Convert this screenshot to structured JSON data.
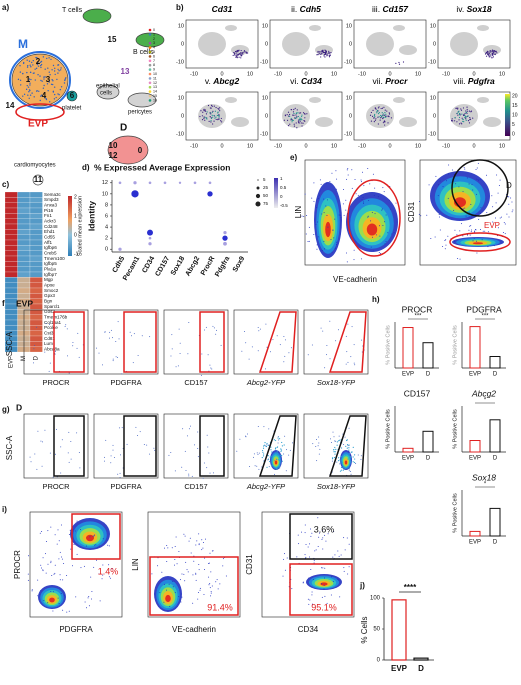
{
  "panel_labels": {
    "a": "a)",
    "b": "b)",
    "c": "c)",
    "d": "d)",
    "e": "e)",
    "f": "f)",
    "g": "g)",
    "h": "h)",
    "i": "i)",
    "j": "j)"
  },
  "a": {
    "M": "M",
    "t_cells": "T cells",
    "b_cells": "B cells",
    "epithelial": [
      "epithelial",
      "cells"
    ],
    "platelet": "platelet",
    "pericytes": "pericytes",
    "evp": "EVP",
    "d": "D",
    "cardiomyocytes": "cardiomyocytes",
    "clusters": [
      "2",
      "1",
      "3",
      "4",
      "14",
      "15",
      "13",
      "6",
      "10",
      "12",
      "0",
      "11"
    ],
    "legend": [
      "0",
      "1",
      "2",
      "3",
      "4",
      "5",
      "6",
      "7",
      "8",
      "9",
      "10",
      "11",
      "12",
      "13",
      "14",
      "15",
      "16"
    ]
  },
  "b": {
    "panels": [
      {
        "gene": "Cd31"
      },
      {
        "numeral": "ii.",
        "gene": "Cdh5"
      },
      {
        "numeral": "iii.",
        "gene": "Cd157"
      },
      {
        "numeral": "iv.",
        "gene": "Sox18"
      },
      {
        "numeral": "v.",
        "gene": "Abcg2"
      },
      {
        "numeral": "vi.",
        "gene": "Cd34"
      },
      {
        "numeral": "vii.",
        "gene": "Procr"
      },
      {
        "numeral": "viii.",
        "gene": "Pdgfra"
      }
    ],
    "xticks": [
      -10,
      0,
      10
    ],
    "yticks": [
      10,
      0,
      -10
    ],
    "colorbar_ticks": [
      20,
      15,
      10,
      5,
      0
    ]
  },
  "c": {
    "colorbar_label": "Scaled mean expression",
    "colorbar_ticks": [
      2,
      1,
      0,
      -1
    ],
    "columns": [
      "EVP",
      "M",
      "D"
    ],
    "genes": [
      "Sema3c",
      "Smpd3",
      "Anxa3",
      "Pi16",
      "Fn1",
      "Ackr3",
      "Cd248",
      "Ehd1",
      "Cd55",
      "Aff1",
      "Igfbp6",
      "Creb5",
      "Tmem100",
      "Igfbp5",
      "Pla1a",
      "Igfbp7",
      "Mgp",
      "Apoe",
      "Smoc2",
      "Gpx3",
      "Bgn",
      "Sparcl1",
      "G0s2",
      "Tmem176b",
      "Col15a1",
      "Pcolce",
      "Cst3",
      "Cd81",
      "Lum",
      "Abca8a"
    ],
    "values": [
      [
        2,
        -0.6,
        -0.6
      ],
      [
        2,
        -0.6,
        -0.5
      ],
      [
        2,
        -0.6,
        -0.6
      ],
      [
        2,
        -0.5,
        -0.6
      ],
      [
        2,
        -0.6,
        -0.5
      ],
      [
        2,
        -0.6,
        -0.6
      ],
      [
        2,
        -0.6,
        -0.5
      ],
      [
        2,
        -0.5,
        -0.6
      ],
      [
        2,
        -0.6,
        -0.6
      ],
      [
        2,
        -0.6,
        -0.6
      ],
      [
        2,
        -0.5,
        -0.6
      ],
      [
        2,
        -0.6,
        -0.6
      ],
      [
        2,
        -0.6,
        -0.5
      ],
      [
        2,
        -0.6,
        -0.6
      ],
      [
        2,
        -0.6,
        -0.6
      ],
      [
        2,
        -0.5,
        -0.6
      ],
      [
        -0.8,
        0.6,
        1.6
      ],
      [
        -0.8,
        0.6,
        1.6
      ],
      [
        -0.8,
        0.7,
        1.5
      ],
      [
        -0.8,
        0.6,
        1.6
      ],
      [
        -0.8,
        0.7,
        1.5
      ],
      [
        -0.8,
        0.6,
        1.6
      ],
      [
        -0.8,
        0.6,
        1.6
      ],
      [
        -0.8,
        0.7,
        1.5
      ],
      [
        -0.8,
        0.6,
        1.6
      ],
      [
        -0.8,
        0.6,
        1.6
      ],
      [
        -0.8,
        0.7,
        1.5
      ],
      [
        -0.8,
        0.6,
        1.6
      ],
      [
        -0.8,
        0.6,
        1.6
      ],
      [
        -0.8,
        0.7,
        1.5
      ]
    ]
  },
  "d": {
    "title": "% Expressed Average Expression",
    "ylabel": "Identity",
    "genes": [
      "Cdh5",
      "Pecam1",
      "CD34",
      "CD157",
      "Sox18",
      "Abcg2",
      "ProcR",
      "Pdgfra",
      "Sox9"
    ],
    "ylim": [
      -0.5,
      12.5
    ],
    "yticks": [
      0,
      2,
      4,
      6,
      8,
      10,
      12
    ],
    "dots": [
      {
        "gene": "Cdh5",
        "identity": 12,
        "pct": 10
      },
      {
        "gene": "Cdh5",
        "identity": 0,
        "pct": 15
      },
      {
        "gene": "Pecam1",
        "identity": 12,
        "pct": 15
      },
      {
        "gene": "Pecam1",
        "identity": 10,
        "pct": 75
      },
      {
        "gene": "CD34",
        "identity": 12,
        "pct": 10
      },
      {
        "gene": "CD34",
        "identity": 3,
        "pct": 50
      },
      {
        "gene": "CD34",
        "identity": 1,
        "pct": 15
      },
      {
        "gene": "CD34",
        "identity": 2,
        "pct": 10
      },
      {
        "gene": "CD157",
        "identity": 12,
        "pct": 10
      },
      {
        "gene": "Abcg2",
        "identity": 12,
        "pct": 10
      },
      {
        "gene": "ProcR",
        "identity": 10,
        "pct": 40
      },
      {
        "gene": "ProcR",
        "identity": 12,
        "pct": 10
      },
      {
        "gene": "Pdgfra",
        "identity": 2,
        "pct": 40
      },
      {
        "gene": "Pdgfra",
        "identity": 1,
        "pct": 20
      },
      {
        "gene": "Pdgfra",
        "identity": 3,
        "pct": 15
      },
      {
        "gene": "Sox18",
        "identity": 12,
        "pct": 8
      }
    ],
    "size_legend": [
      5,
      25,
      50,
      75
    ],
    "color_ticks": [
      1,
      0.5,
      0,
      -0.5
    ]
  },
  "e": {
    "plot1": {
      "ylabel": "LIN",
      "xlabel": "VE-cadherin"
    },
    "plot2": {
      "ylabel": "CD31",
      "xlabel": "CD34",
      "d": "D",
      "evp": "EVP"
    }
  },
  "f": {
    "group": "EVP",
    "ylabel": "SSC-A",
    "xlabels": [
      "PROCR",
      "PDGFRA",
      "CD157",
      "Abcg2-YFP",
      "Sox18-YFP"
    ]
  },
  "g": {
    "group": "D",
    "ylabel": "SSC-A",
    "xlabels": [
      "PROCR",
      "PDGFRA",
      "CD157",
      "Abcg2-YFP",
      "Sox18-YFP"
    ]
  },
  "h": {
    "ylabel": "% Positive Cells",
    "groups": [
      "EVP",
      "D"
    ],
    "ylim": [
      0,
      100
    ],
    "charts": [
      {
        "title": "PROCR",
        "values": [
          88,
          55
        ],
        "sig": "***"
      },
      {
        "title": "PDGFRA",
        "values": [
          90,
          25
        ],
        "sig": "***"
      },
      {
        "title": "CD157",
        "values": [
          8,
          45
        ]
      },
      {
        "title": "Abcg2",
        "values": [
          25,
          70
        ],
        "sig": "*"
      },
      {
        "title": "Sox18",
        "values": [
          10,
          60
        ],
        "sig": "*"
      }
    ]
  },
  "i": {
    "plots": [
      {
        "ylabel": "PROCR",
        "xlabel": "PDGFRA",
        "gates": [
          "1.4%"
        ]
      },
      {
        "ylabel": "LIN",
        "xlabel": "VE-cadherin",
        "gates": [
          "91.4%"
        ]
      },
      {
        "ylabel": "CD31",
        "xlabel": "CD34",
        "gates": [
          "3.6%",
          "95.1%"
        ]
      }
    ]
  },
  "j": {
    "ylabel": "% Cells",
    "groups": [
      "EVP",
      "D"
    ],
    "values": [
      97,
      3
    ],
    "ylim": [
      0,
      100
    ],
    "yticks": [
      0,
      50,
      100
    ],
    "sig": "****"
  }
}
